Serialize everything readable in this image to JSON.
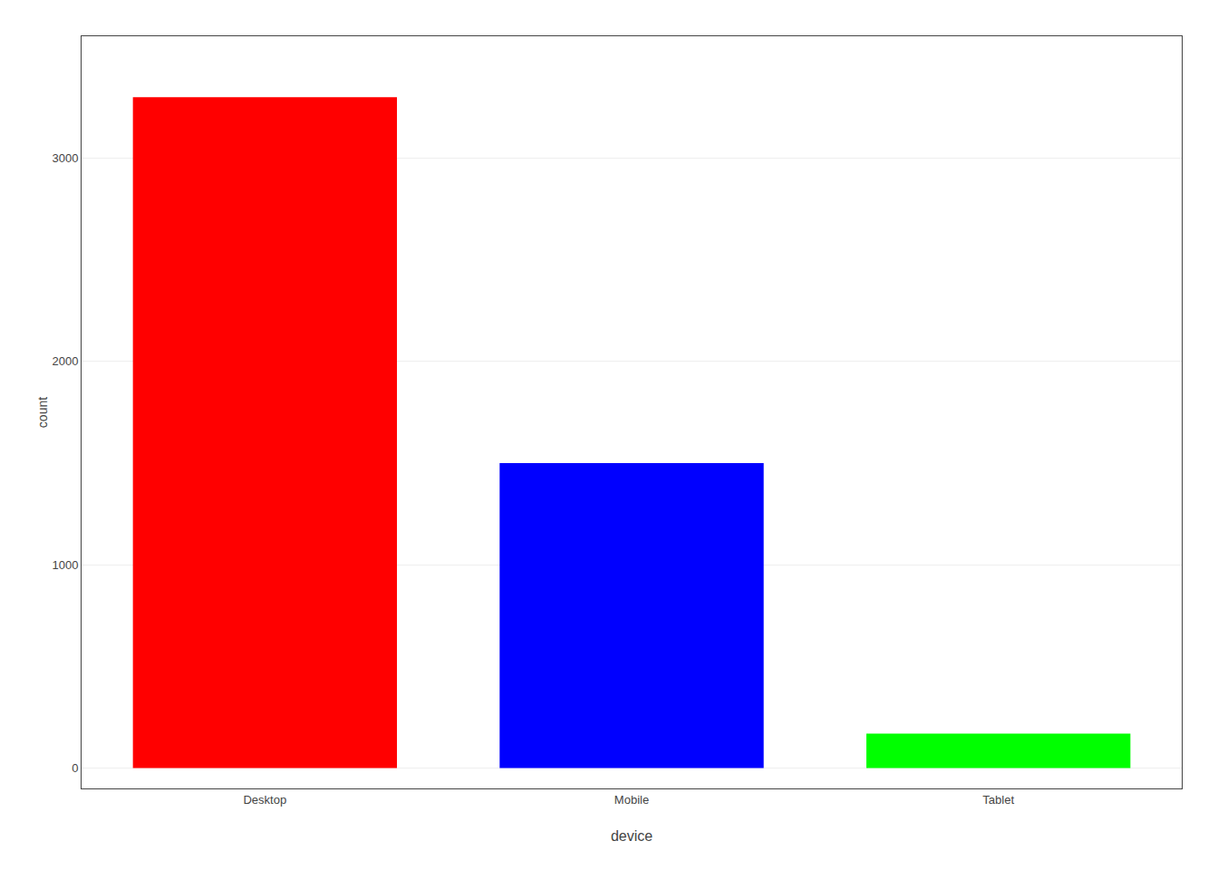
{
  "chart_data": {
    "type": "bar",
    "categories": [
      "Desktop",
      "Mobile",
      "Tablet"
    ],
    "values": [
      3300,
      1500,
      170
    ],
    "colors": [
      "#FF0000",
      "#0000FF",
      "#00FF00"
    ],
    "xlabel": "device",
    "ylabel": "count",
    "ylim": [
      -100,
      3600
    ],
    "yticks": [
      0,
      1000,
      2000,
      3000
    ],
    "grid": true
  }
}
